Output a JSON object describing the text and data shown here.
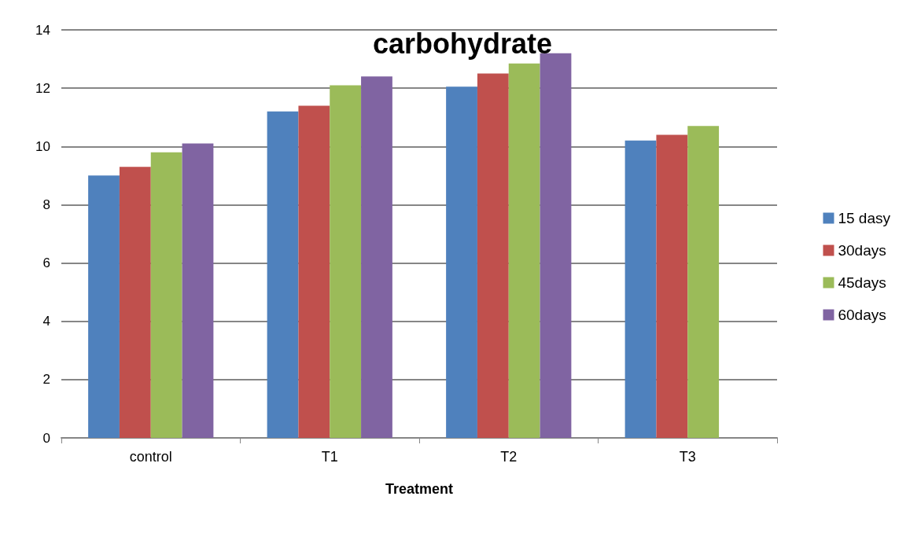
{
  "chart_data": {
    "type": "bar",
    "title": "carbohydrate",
    "xlabel": "Treatment",
    "categories": [
      "control",
      "T1",
      "T2",
      "T3"
    ],
    "series": [
      {
        "name": "15 dasy",
        "color": "#4f81bd",
        "values": [
          9.0,
          11.2,
          12.05,
          10.2
        ]
      },
      {
        "name": "30days",
        "color": "#c0504d",
        "values": [
          9.3,
          11.4,
          12.5,
          10.4
        ]
      },
      {
        "name": "45days",
        "color": "#9bbb59",
        "values": [
          9.8,
          12.1,
          12.85,
          10.7
        ]
      },
      {
        "name": "60days",
        "color": "#8064a2",
        "values": [
          10.1,
          12.4,
          13.2,
          null
        ]
      }
    ],
    "ylim": [
      0,
      14
    ],
    "yticks": [
      0,
      2,
      4,
      6,
      8,
      10,
      12,
      14
    ],
    "grid": "y",
    "legend": "right"
  }
}
